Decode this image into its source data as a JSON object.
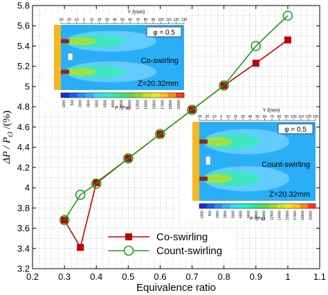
{
  "chart_data": {
    "type": "line",
    "xlabel": "Equivalence ratio",
    "ylabel": {
      "main": "ΔP / P",
      "subscript": "t3",
      "unit": "/(%)"
    },
    "xlim": [
      0.2,
      1.1
    ],
    "ylim": [
      3.2,
      5.8
    ],
    "x_ticks": [
      "0.2",
      "0.3",
      "0.4",
      "0.5",
      "0.6",
      "0.7",
      "0.8",
      "0.9",
      "1",
      "1.1"
    ],
    "y_ticks": [
      "3.2",
      "3.4",
      "3.6",
      "3.8",
      "4",
      "4.2",
      "4.4",
      "4.6",
      "4.8",
      "5",
      "5.2",
      "5.4",
      "5.6",
      "5.8"
    ],
    "grid": true,
    "legend_position": "bottom-center",
    "series": [
      {
        "name": "Co-swirling",
        "color": "#c00000",
        "marker": "square",
        "x": [
          0.3,
          0.35,
          0.4,
          0.5,
          0.6,
          0.7,
          0.8,
          0.9,
          1.0
        ],
        "y": [
          3.68,
          3.41,
          4.05,
          4.29,
          4.53,
          4.77,
          5.01,
          5.23,
          5.46
        ]
      },
      {
        "name": "Count-swirling",
        "color": "#1a9e1a",
        "marker": "circle",
        "x": [
          0.3,
          0.35,
          0.4,
          0.5,
          0.6,
          0.7,
          0.8,
          0.9,
          1.0
        ],
        "y": [
          3.68,
          3.93,
          4.04,
          4.29,
          4.53,
          4.77,
          5.01,
          5.4,
          5.7
        ]
      }
    ],
    "insets": [
      {
        "id": "co",
        "phi_label": "φ = 0.5",
        "title": "Co-swirling",
        "z_label": "Z=20.32mm",
        "axis_top_label": "Y /(mm)",
        "axis_top_ticks": [
          "-30",
          "-20",
          "-10",
          "0",
          "10",
          "20",
          "30",
          "40",
          "50",
          "60",
          "70",
          "80",
          "90",
          "100",
          "110",
          "120",
          "130"
        ],
        "colorbar_label": "P /(Pa)",
        "colorbar_ticks": [
          "-1000",
          "500",
          "2000",
          "3500",
          "5000",
          "6500",
          "8000",
          "9500",
          "11000",
          "12500",
          "14000",
          "15500",
          "17000",
          "18500",
          "20000"
        ],
        "colorbar_colors": [
          "#1a2fd6",
          "#1f5ef0",
          "#2b8cff",
          "#33b5ff",
          "#30d9ff",
          "#28eedd",
          "#2aedb0",
          "#3ae27a",
          "#5ad84e",
          "#8ddc2a",
          "#c6e41f",
          "#f0e51c",
          "#ffc21a",
          "#ff8a17",
          "#ff3a12"
        ]
      },
      {
        "id": "count",
        "phi_label": "φ = 0.5",
        "title": "Count-swirling",
        "z_label": "Z=20.32mm",
        "axis_top_label": "Y /(mm)",
        "axis_top_ticks": [
          "-30",
          "-20",
          "-10",
          "0",
          "10",
          "20",
          "30",
          "40",
          "50",
          "60",
          "70",
          "80",
          "90",
          "100",
          "110",
          "120",
          "130"
        ],
        "colorbar_label": "P /(Pa)",
        "colorbar_ticks": [
          "-1000",
          "500",
          "2000",
          "3500",
          "5000",
          "6500",
          "8000",
          "9500",
          "11000",
          "12500",
          "14000",
          "15500",
          "17000",
          "18500",
          "20000"
        ],
        "colorbar_colors": [
          "#1a2fd6",
          "#1f5ef0",
          "#2b8cff",
          "#33b5ff",
          "#30d9ff",
          "#28eedd",
          "#2aedb0",
          "#3ae27a",
          "#5ad84e",
          "#8ddc2a",
          "#c6e41f",
          "#f0e51c",
          "#ffc21a",
          "#ff8a17",
          "#ff3a12"
        ]
      }
    ]
  }
}
